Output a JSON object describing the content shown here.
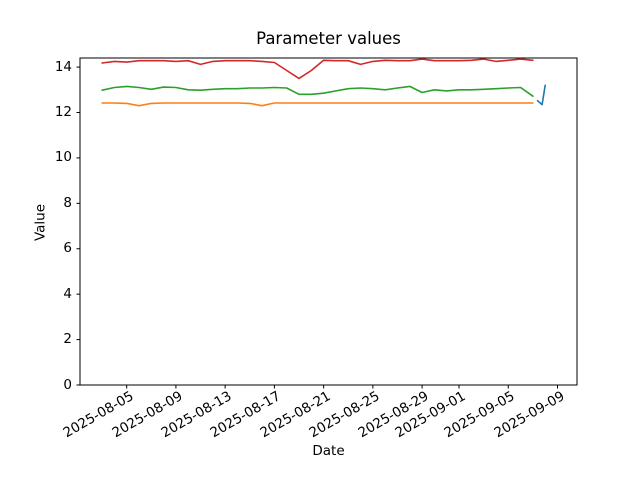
{
  "chart_data": {
    "type": "line",
    "title": "Parameter values",
    "xlabel": "Date",
    "ylabel": "Value",
    "grid": false,
    "legend": "none",
    "ylim": [
      0,
      14.4
    ],
    "yticks": [
      0,
      2,
      4,
      6,
      8,
      10,
      12,
      14
    ],
    "xlim": [
      "2025-08-01T05:00:00Z",
      "2025-09-10T14:00:00Z"
    ],
    "xticks": [
      "2025-08-05",
      "2025-08-09",
      "2025-08-13",
      "2025-08-17",
      "2025-08-21",
      "2025-08-25",
      "2025-08-29",
      "2025-09-01",
      "2025-09-05",
      "2025-09-09"
    ],
    "x": [
      "2025-08-03",
      "2025-08-04",
      "2025-08-05",
      "2025-08-06",
      "2025-08-07",
      "2025-08-08",
      "2025-08-09",
      "2025-08-10",
      "2025-08-11",
      "2025-08-12",
      "2025-08-13",
      "2025-08-14",
      "2025-08-15",
      "2025-08-16",
      "2025-08-17",
      "2025-08-18",
      "2025-08-19",
      "2025-08-20",
      "2025-08-21",
      "2025-08-22",
      "2025-08-23",
      "2025-08-24",
      "2025-08-25",
      "2025-08-26",
      "2025-08-27",
      "2025-08-28",
      "2025-08-29",
      "2025-08-30",
      "2025-08-31",
      "2025-09-01",
      "2025-09-02",
      "2025-09-03",
      "2025-09-04",
      "2025-09-05",
      "2025-09-06",
      "2025-09-07"
    ],
    "series": [
      {
        "name": "orange-series",
        "color": "#ff7f0e",
        "values": [
          12.42,
          12.42,
          12.4,
          12.3,
          12.4,
          12.42,
          12.42,
          12.42,
          12.42,
          12.42,
          12.42,
          12.42,
          12.4,
          12.3,
          12.42,
          12.42,
          12.42,
          12.42,
          12.42,
          12.42,
          12.42,
          12.42,
          12.42,
          12.42,
          12.42,
          12.42,
          12.42,
          12.42,
          12.42,
          12.42,
          12.42,
          12.42,
          12.42,
          12.42,
          12.42,
          12.42
        ]
      },
      {
        "name": "green-series",
        "color": "#2ca02c",
        "values": [
          12.98,
          13.1,
          13.15,
          13.1,
          13.02,
          13.12,
          13.1,
          13.0,
          12.98,
          13.02,
          13.05,
          13.05,
          13.08,
          13.08,
          13.1,
          13.08,
          12.8,
          12.8,
          12.85,
          12.95,
          13.05,
          13.08,
          13.05,
          13.0,
          13.08,
          13.15,
          12.88,
          13.0,
          12.95,
          13.0,
          13.0,
          13.02,
          13.05,
          13.08,
          13.1,
          12.72
        ]
      },
      {
        "name": "red-series",
        "color": "#d62728",
        "values": [
          14.18,
          14.25,
          14.22,
          14.28,
          14.28,
          14.28,
          14.25,
          14.28,
          14.12,
          14.25,
          14.28,
          14.28,
          14.28,
          14.25,
          14.2,
          13.85,
          13.5,
          13.85,
          14.3,
          14.28,
          14.28,
          14.12,
          14.25,
          14.3,
          14.28,
          14.28,
          14.35,
          14.28,
          14.28,
          14.28,
          14.3,
          14.35,
          14.25,
          14.3,
          14.35,
          14.3
        ]
      },
      {
        "name": "blue-series",
        "color": "#1f77b4",
        "x": [
          "2025-09-07T09:00:00Z",
          "2025-09-07T18:00:00Z",
          "2025-09-08T00:00:00Z"
        ],
        "values": [
          12.52,
          12.35,
          13.2
        ]
      }
    ]
  }
}
